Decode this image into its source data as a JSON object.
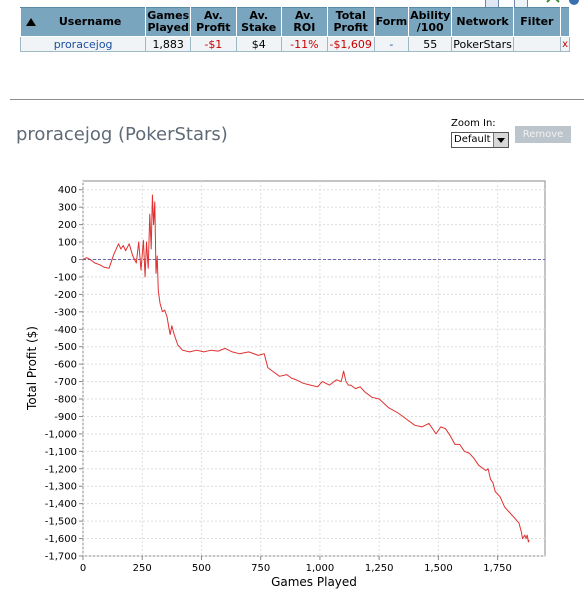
{
  "table": {
    "headers": {
      "username": "Username",
      "games_played": [
        "Games",
        "Played"
      ],
      "av_profit": [
        "Av.",
        "Profit"
      ],
      "av_stake": [
        "Av.",
        "Stake"
      ],
      "av_roi": "Av. ROI",
      "total_profit": [
        "Total",
        "Profit"
      ],
      "form": "Form",
      "ability": [
        "Ability",
        "/100"
      ],
      "network": "Network",
      "filter": "Filter"
    },
    "row": {
      "username": "proracejog",
      "games_played": "1,883",
      "av_profit": "-$1",
      "av_stake": "$4",
      "av_roi": "-11%",
      "total_profit": "-$1,609",
      "form": "-",
      "ability": "55",
      "network": "PokerStars",
      "filter": "",
      "remove_glyph": "x"
    }
  },
  "player_title": "proracejog (PokerStars)",
  "zoom": {
    "label": "Zoom In:",
    "selected": "Default"
  },
  "remove_button": "Remove",
  "icons": {
    "sort": "sort-up-arrow-icon",
    "dropdown": "chevron-down-icon"
  },
  "colors": {
    "header_bg": "#7aa5be",
    "negative": "#cc0000",
    "line": "#e03030",
    "zero_line": "#6666aa"
  },
  "chart_data": {
    "type": "line",
    "xlabel": "Games Played",
    "ylabel": "Total Profit ($)",
    "xlim": [
      0,
      1950
    ],
    "ylim": [
      -1700,
      450
    ],
    "x_ticks": [
      0,
      250,
      500,
      750,
      1000,
      1250,
      1500,
      1750
    ],
    "x_tick_labels": [
      "0",
      "250",
      "500",
      "750",
      "1,000",
      "1,250",
      "1,500",
      "1,750"
    ],
    "y_ticks": [
      400,
      300,
      200,
      100,
      0,
      -100,
      -200,
      -300,
      -400,
      -500,
      -600,
      -700,
      -800,
      -900,
      -1000,
      -1100,
      -1200,
      -1300,
      -1400,
      -1500,
      -1600,
      -1700
    ],
    "y_tick_labels": [
      "400",
      "300",
      "200",
      "100",
      "0",
      "-100",
      "-200",
      "-300",
      "-400",
      "-500",
      "-600",
      "-700",
      "-800",
      "-900",
      "-1,000",
      "-1,100",
      "-1,200",
      "-1,300",
      "-1,400",
      "-1,500",
      "-1,600",
      "-1,700"
    ],
    "grid": true,
    "zero_line": 0,
    "series": [
      {
        "x": [
          0,
          15,
          30,
          50,
          70,
          90,
          110,
          130,
          150,
          160,
          170,
          180,
          195,
          210,
          225,
          235,
          245,
          255,
          262,
          268,
          275,
          282,
          288,
          293,
          298,
          303,
          308,
          313,
          318,
          325,
          335,
          345,
          355,
          362,
          368,
          375,
          385,
          400,
          420,
          450,
          480,
          510,
          540,
          570,
          600,
          630,
          660,
          700,
          740,
          765,
          780,
          800,
          830,
          860,
          880,
          900,
          930,
          960,
          990,
          1010,
          1040,
          1070,
          1090,
          1100,
          1110,
          1120,
          1130,
          1150,
          1170,
          1190,
          1220,
          1250,
          1290,
          1330,
          1370,
          1400,
          1430,
          1460,
          1490,
          1510,
          1530,
          1550,
          1570,
          1590,
          1610,
          1630,
          1650,
          1670,
          1700,
          1710,
          1720,
          1730,
          1740,
          1760,
          1780,
          1800,
          1820,
          1840,
          1850,
          1855,
          1860,
          1865,
          1870,
          1875,
          1880,
          1883
        ],
        "y": [
          0,
          10,
          0,
          -20,
          -30,
          -45,
          -50,
          30,
          90,
          60,
          80,
          50,
          90,
          20,
          -20,
          100,
          -60,
          110,
          -100,
          100,
          -50,
          260,
          60,
          370,
          200,
          330,
          -80,
          20,
          -180,
          -250,
          -300,
          -290,
          -330,
          -390,
          -430,
          -380,
          -430,
          -490,
          -520,
          -530,
          -520,
          -530,
          -520,
          -525,
          -510,
          -530,
          -540,
          -530,
          -550,
          -540,
          -620,
          -640,
          -670,
          -660,
          -680,
          -690,
          -710,
          -720,
          -730,
          -700,
          -720,
          -690,
          -700,
          -640,
          -700,
          -720,
          -720,
          -740,
          -730,
          -760,
          -790,
          -800,
          -850,
          -880,
          -920,
          -950,
          -960,
          -940,
          -1000,
          -960,
          -970,
          -1010,
          -1060,
          -1060,
          -1100,
          -1110,
          -1140,
          -1180,
          -1210,
          -1200,
          -1260,
          -1280,
          -1330,
          -1360,
          -1420,
          -1450,
          -1480,
          -1510,
          -1560,
          -1600,
          -1590,
          -1580,
          -1600,
          -1580,
          -1620,
          -1609
        ]
      }
    ]
  }
}
